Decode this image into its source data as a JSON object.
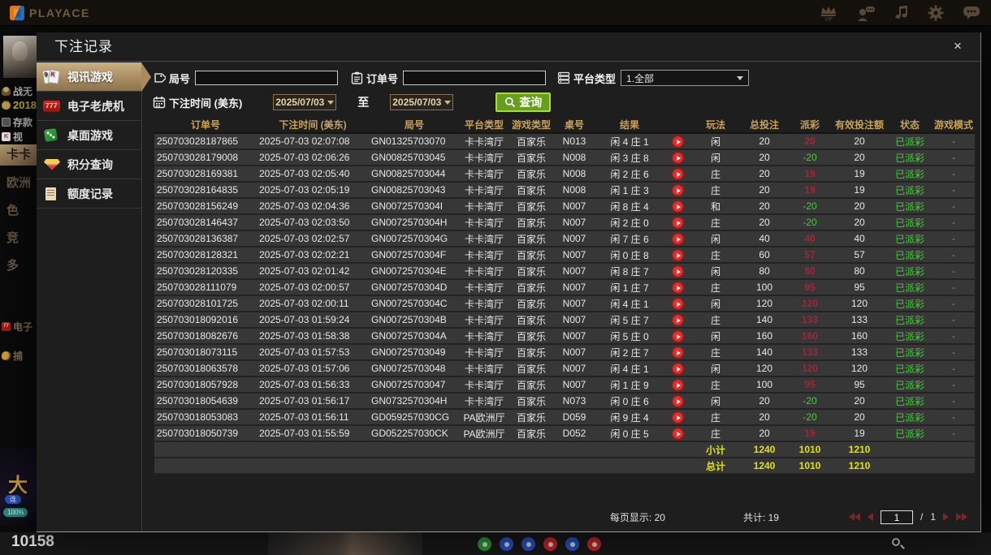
{
  "topbar": {
    "brand": "PLAYACE",
    "vip_text": "VIP"
  },
  "app_background": {
    "user_name": "战无",
    "balance": "2018",
    "deposit_label": "存款",
    "video_label": "视",
    "rooms": [
      "卡卡",
      "欧洲",
      "色",
      "竞",
      "多"
    ],
    "slots_label": "电子",
    "fishing_label": "捕",
    "banner": {
      "big": "大",
      "pill": "连",
      "pct": "100%"
    },
    "bottom_number": "10158"
  },
  "modal": {
    "title": "下注记录",
    "close_label": "×",
    "tabs": [
      {
        "label": "视讯游戏",
        "active": true
      },
      {
        "label": "电子老虎机",
        "active": false
      },
      {
        "label": "桌面游戏",
        "active": false
      },
      {
        "label": "积分查询",
        "active": false
      },
      {
        "label": "额度记录",
        "active": false
      }
    ],
    "tab_icon_glyphs": {
      "card_front": "K",
      "card_back": "9",
      "slots": "777"
    },
    "filters": {
      "round_label": "局号",
      "order_label": "订单号",
      "platform_label": "平台类型",
      "platform_value": "1.全部",
      "time_label": "下注时间 (美东)",
      "date_from": "2025/07/03",
      "to_label": "至",
      "date_to": "2025/07/03",
      "search_label": "查询"
    },
    "table": {
      "headers": [
        "订单号",
        "下注时间 (美东)",
        "局号",
        "平台类型",
        "游戏类型",
        "桌号",
        "结果",
        "",
        "玩法",
        "总投注",
        "派彩",
        "有效投注额",
        "状态",
        "游戏模式"
      ],
      "rows": [
        {
          "order": "250703028187865",
          "time": "2025-07-03 02:07:08",
          "round": "GN01325703070",
          "platform": "卡卡湾厅",
          "game": "百家乐",
          "table": "N013",
          "result": "闲 4 庄 1",
          "play": "闲",
          "total": "20",
          "payout": "20",
          "valid": "20",
          "status": "已派彩",
          "mode": "-"
        },
        {
          "order": "250703028179008",
          "time": "2025-07-03 02:06:26",
          "round": "GN00825703045",
          "platform": "卡卡湾厅",
          "game": "百家乐",
          "table": "N008",
          "result": "闲 3 庄 8",
          "play": "闲",
          "total": "20",
          "payout": "-20",
          "valid": "20",
          "status": "已派彩",
          "mode": "-"
        },
        {
          "order": "250703028169381",
          "time": "2025-07-03 02:05:40",
          "round": "GN00825703044",
          "platform": "卡卡湾厅",
          "game": "百家乐",
          "table": "N008",
          "result": "闲 2 庄 6",
          "play": "庄",
          "total": "20",
          "payout": "19",
          "valid": "19",
          "status": "已派彩",
          "mode": "-"
        },
        {
          "order": "250703028164835",
          "time": "2025-07-03 02:05:19",
          "round": "GN00825703043",
          "platform": "卡卡湾厅",
          "game": "百家乐",
          "table": "N008",
          "result": "闲 1 庄 3",
          "play": "庄",
          "total": "20",
          "payout": "19",
          "valid": "19",
          "status": "已派彩",
          "mode": "-"
        },
        {
          "order": "250703028156249",
          "time": "2025-07-03 02:04:36",
          "round": "GN0072570304I",
          "platform": "卡卡湾厅",
          "game": "百家乐",
          "table": "N007",
          "result": "闲 8 庄 4",
          "play": "和",
          "total": "20",
          "payout": "-20",
          "valid": "20",
          "status": "已派彩",
          "mode": "-"
        },
        {
          "order": "250703028146437",
          "time": "2025-07-03 02:03:50",
          "round": "GN0072570304H",
          "platform": "卡卡湾厅",
          "game": "百家乐",
          "table": "N007",
          "result": "闲 2 庄 0",
          "play": "庄",
          "total": "20",
          "payout": "-20",
          "valid": "20",
          "status": "已派彩",
          "mode": "-"
        },
        {
          "order": "250703028136387",
          "time": "2025-07-03 02:02:57",
          "round": "GN0072570304G",
          "platform": "卡卡湾厅",
          "game": "百家乐",
          "table": "N007",
          "result": "闲 7 庄 6",
          "play": "闲",
          "total": "40",
          "payout": "40",
          "valid": "40",
          "status": "已派彩",
          "mode": "-"
        },
        {
          "order": "250703028128321",
          "time": "2025-07-03 02:02:21",
          "round": "GN0072570304F",
          "platform": "卡卡湾厅",
          "game": "百家乐",
          "table": "N007",
          "result": "闲 0 庄 8",
          "play": "庄",
          "total": "60",
          "payout": "57",
          "valid": "57",
          "status": "已派彩",
          "mode": "-"
        },
        {
          "order": "250703028120335",
          "time": "2025-07-03 02:01:42",
          "round": "GN0072570304E",
          "platform": "卡卡湾厅",
          "game": "百家乐",
          "table": "N007",
          "result": "闲 8 庄 7",
          "play": "闲",
          "total": "80",
          "payout": "80",
          "valid": "80",
          "status": "已派彩",
          "mode": "-"
        },
        {
          "order": "250703028111079",
          "time": "2025-07-03 02:00:57",
          "round": "GN0072570304D",
          "platform": "卡卡湾厅",
          "game": "百家乐",
          "table": "N007",
          "result": "闲 1 庄 7",
          "play": "庄",
          "total": "100",
          "payout": "95",
          "valid": "95",
          "status": "已派彩",
          "mode": "-"
        },
        {
          "order": "250703028101725",
          "time": "2025-07-03 02:00:11",
          "round": "GN0072570304C",
          "platform": "卡卡湾厅",
          "game": "百家乐",
          "table": "N007",
          "result": "闲 4 庄 1",
          "play": "闲",
          "total": "120",
          "payout": "120",
          "valid": "120",
          "status": "已派彩",
          "mode": "-"
        },
        {
          "order": "250703018092016",
          "time": "2025-07-03 01:59:24",
          "round": "GN0072570304B",
          "platform": "卡卡湾厅",
          "game": "百家乐",
          "table": "N007",
          "result": "闲 5 庄 7",
          "play": "庄",
          "total": "140",
          "payout": "133",
          "valid": "133",
          "status": "已派彩",
          "mode": "-"
        },
        {
          "order": "250703018082676",
          "time": "2025-07-03 01:58:38",
          "round": "GN0072570304A",
          "platform": "卡卡湾厅",
          "game": "百家乐",
          "table": "N007",
          "result": "闲 5 庄 0",
          "play": "闲",
          "total": "160",
          "payout": "160",
          "valid": "160",
          "status": "已派彩",
          "mode": "-"
        },
        {
          "order": "250703018073115",
          "time": "2025-07-03 01:57:53",
          "round": "GN00725703049",
          "platform": "卡卡湾厅",
          "game": "百家乐",
          "table": "N007",
          "result": "闲 2 庄 7",
          "play": "庄",
          "total": "140",
          "payout": "133",
          "valid": "133",
          "status": "已派彩",
          "mode": "-"
        },
        {
          "order": "250703018063578",
          "time": "2025-07-03 01:57:06",
          "round": "GN00725703048",
          "platform": "卡卡湾厅",
          "game": "百家乐",
          "table": "N007",
          "result": "闲 4 庄 1",
          "play": "闲",
          "total": "120",
          "payout": "120",
          "valid": "120",
          "status": "已派彩",
          "mode": "-"
        },
        {
          "order": "250703018057928",
          "time": "2025-07-03 01:56:33",
          "round": "GN00725703047",
          "platform": "卡卡湾厅",
          "game": "百家乐",
          "table": "N007",
          "result": "闲 1 庄 9",
          "play": "庄",
          "total": "100",
          "payout": "95",
          "valid": "95",
          "status": "已派彩",
          "mode": "-"
        },
        {
          "order": "250703018054639",
          "time": "2025-07-03 01:56:17",
          "round": "GN0732570304H",
          "platform": "卡卡湾厅",
          "game": "百家乐",
          "table": "N073",
          "result": "闲 0 庄 6",
          "play": "闲",
          "total": "20",
          "payout": "-20",
          "valid": "20",
          "status": "已派彩",
          "mode": "-"
        },
        {
          "order": "250703018053083",
          "time": "2025-07-03 01:56:11",
          "round": "GD059257030CG",
          "platform": "PA欧洲厅",
          "game": "百家乐",
          "table": "D059",
          "result": "闲 9 庄 4",
          "play": "庄",
          "total": "20",
          "payout": "-20",
          "valid": "20",
          "status": "已派彩",
          "mode": "-"
        },
        {
          "order": "250703018050739",
          "time": "2025-07-03 01:55:59",
          "round": "GD052257030CK",
          "platform": "PA欧洲厅",
          "game": "百家乐",
          "table": "D052",
          "result": "闲 0 庄 5",
          "play": "庄",
          "total": "20",
          "payout": "19",
          "valid": "19",
          "status": "已派彩",
          "mode": "-"
        }
      ],
      "summary": [
        {
          "label": "小计",
          "total": "1240",
          "payout": "1010",
          "valid": "1210"
        },
        {
          "label": "总计",
          "total": "1240",
          "payout": "1010",
          "valid": "1210"
        }
      ]
    },
    "footer": {
      "page_size_text": "每页显示: 20",
      "total_text": "共计: 19",
      "page": "1",
      "page_divider": "/",
      "total_pages": "1"
    }
  },
  "colors": {
    "header_accent": "#c8a25a",
    "active_tab": "#b59a6b",
    "win_red": "#a32638",
    "loss_green": "#43cf35",
    "paid_status_green": "#43cf35",
    "summary_yellow": "#e3e300",
    "search_button_green": "#669f1f",
    "play_icon_red": "#d42222"
  }
}
